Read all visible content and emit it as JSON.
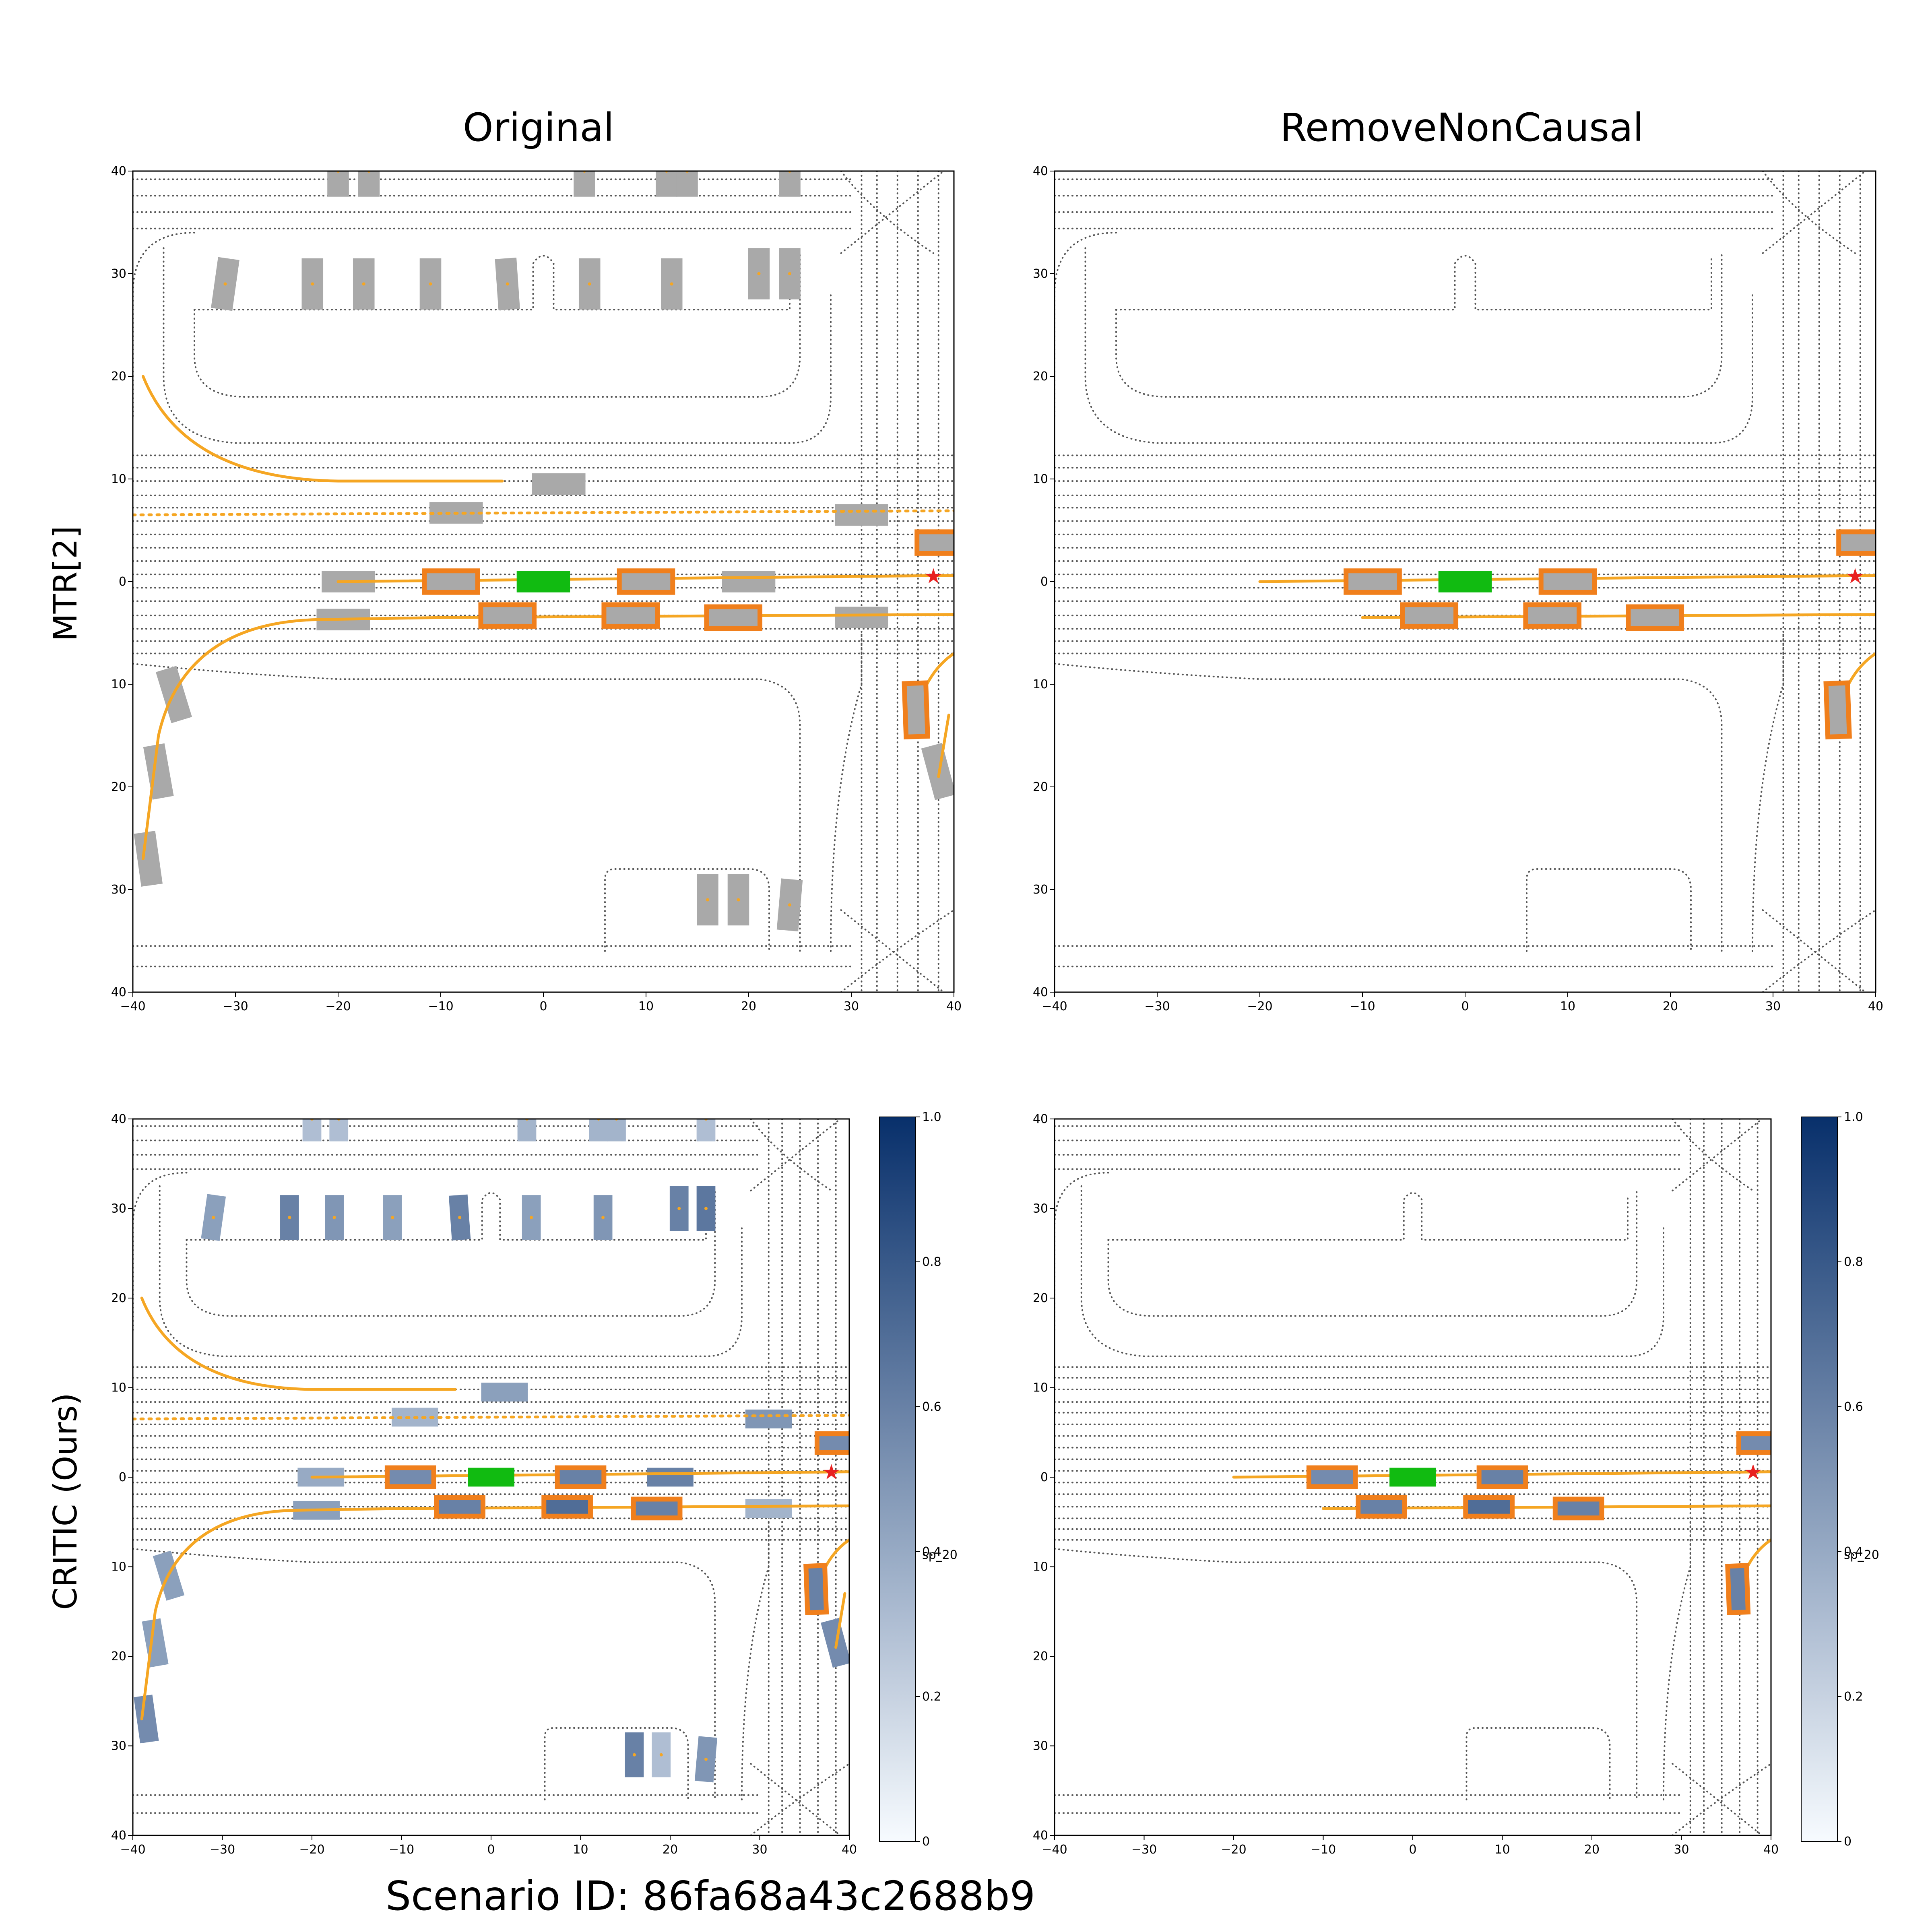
{
  "figure": {
    "column_titles": [
      "Original",
      "RemoveNonCausal"
    ],
    "row_titles": [
      "MTR[2]",
      "CRITIC (Ours)"
    ],
    "footer": "Scenario ID: 86fa68a43c2688b9"
  },
  "axes": {
    "x_ticks": [
      "−40",
      "−30",
      "−20",
      "−10",
      "0",
      "10",
      "20",
      "30",
      "40"
    ],
    "y_ticks": [
      "40",
      "30",
      "20",
      "10",
      "0",
      "10",
      "20",
      "30",
      "40"
    ],
    "xlim": [
      -40,
      40
    ],
    "ylim": [
      -40,
      40
    ]
  },
  "colorbar": {
    "label": "sp_20",
    "ticks": [
      "1.0",
      "0.8",
      "0.6",
      "0.4",
      "0.2",
      "0"
    ],
    "tick_values": [
      1.0,
      0.8,
      0.6,
      0.4,
      0.2,
      0
    ]
  },
  "colors": {
    "road": "#555555",
    "gray_agent": "#a9a9a9",
    "ego": "#11bb11",
    "highlight": "#f07f1c",
    "trajectory": "#f5a623",
    "goal_star": "#e82020"
  },
  "scene": {
    "parked_agents": [
      {
        "x": -31,
        "y": 29,
        "c": 0.45,
        "a": 8
      },
      {
        "x": -22.5,
        "y": 29,
        "c": 0.6
      },
      {
        "x": -17.5,
        "y": 29,
        "c": 0.5
      },
      {
        "x": -11,
        "y": 29,
        "c": 0.45
      },
      {
        "x": -3.5,
        "y": 29,
        "c": 0.6,
        "a": -4
      },
      {
        "x": 4.5,
        "y": 29,
        "c": 0.45
      },
      {
        "x": 12.5,
        "y": 29,
        "c": 0.5
      },
      {
        "x": 21,
        "y": 30,
        "c": 0.6
      },
      {
        "x": 24,
        "y": 30,
        "c": 0.65
      },
      {
        "x": -20,
        "y": 40,
        "c": 0.3
      },
      {
        "x": -17,
        "y": 40,
        "c": 0.3
      },
      {
        "x": 4,
        "y": 40,
        "c": 0.35
      },
      {
        "x": 12,
        "y": 40,
        "c": 0.35
      },
      {
        "x": 14,
        "y": 40,
        "c": 0.35
      },
      {
        "x": 24,
        "y": 40,
        "c": 0.3
      },
      {
        "x": 16,
        "y": -31,
        "c": 0.6
      },
      {
        "x": 19,
        "y": -31,
        "c": 0.3
      },
      {
        "x": 24,
        "y": -31.5,
        "c": 0.5,
        "a": 5
      }
    ],
    "road_agents_removable": [
      {
        "x": 1.5,
        "y": 9.5,
        "c": 0.45
      },
      {
        "x": -8.5,
        "y": 6.7,
        "c": 0.35
      },
      {
        "x": 31,
        "y": 6.5,
        "c": 0.5
      },
      {
        "x": -19,
        "y": 0,
        "c": 0.4
      },
      {
        "x": 20,
        "y": 0,
        "c": 0.6
      },
      {
        "x": -19.5,
        "y": -3.7,
        "c": 0.45
      },
      {
        "x": 31,
        "y": -3.5,
        "c": 0.35
      },
      {
        "x": -36,
        "y": -11,
        "c": 0.45,
        "a": 73
      },
      {
        "x": -37.5,
        "y": -18.5,
        "c": 0.45,
        "a": 80
      },
      {
        "x": -38.5,
        "y": -27,
        "c": 0.55,
        "a": 82
      },
      {
        "x": 38.5,
        "y": -18.5,
        "c": 0.55,
        "a": 75
      }
    ],
    "ego_vehicle": {
      "x": 0,
      "y": 0
    },
    "goal": {
      "x": 38,
      "y": 0.4
    },
    "causal_agents": [
      {
        "x": -9,
        "y": 0,
        "c": 0.55
      },
      {
        "x": 10,
        "y": 0,
        "c": 0.6
      },
      {
        "x": -3.5,
        "y": -3.3,
        "c": 0.6
      },
      {
        "x": 8.5,
        "y": -3.3,
        "c": 0.7
      },
      {
        "x": 18.5,
        "y": -3.5,
        "c": 0.6
      },
      {
        "x": 39,
        "y": 3.8,
        "c": 0.55
      },
      {
        "x": 36.3,
        "y": -12.5,
        "c": 0.6,
        "a": 88
      }
    ]
  }
}
